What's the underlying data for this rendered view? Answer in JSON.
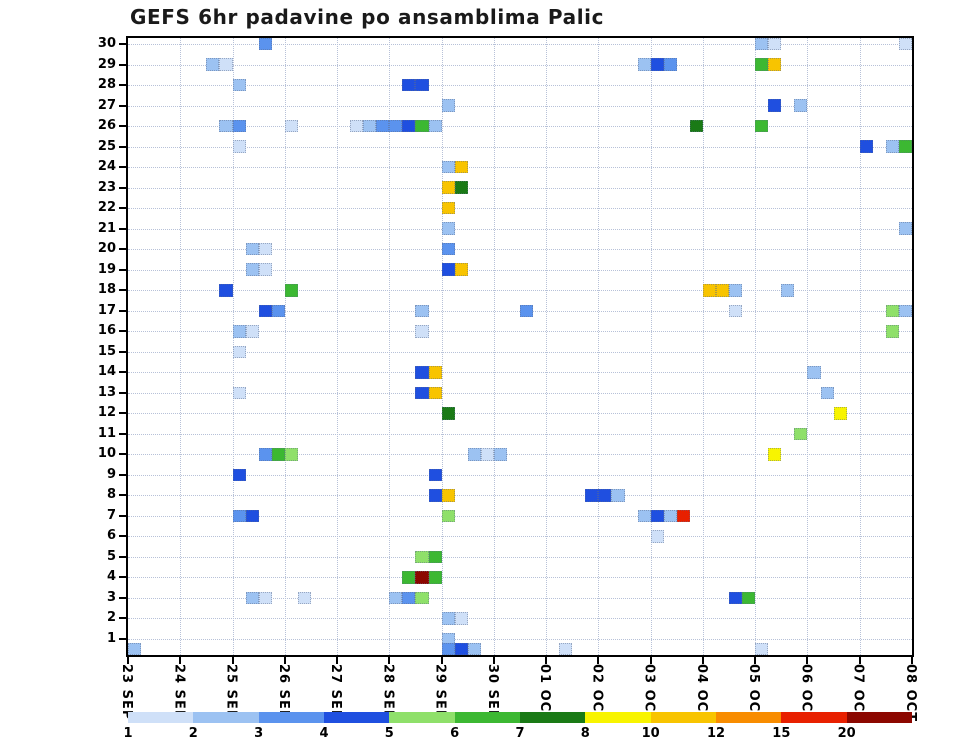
{
  "title": "GEFS 6hr padavine po ansamblima Palic",
  "y_axis": {
    "tick_labels": [
      "30",
      "29",
      "28",
      "27",
      "26",
      "25",
      "24",
      "23",
      "22",
      "21",
      "20",
      "19",
      "18",
      "17",
      "16",
      "15",
      "14",
      "13",
      "12",
      "11",
      "10",
      "9",
      "8",
      "7",
      "6",
      "5",
      "4",
      "3",
      "2",
      "1"
    ]
  },
  "x_axis": {
    "tick_labels": [
      "23 SEP",
      "24 SEP",
      "25 SEP",
      "26 SEP",
      "27 SEP",
      "28 SEP",
      "29 SEP",
      "30 SEP",
      "01 OCT",
      "02 OCT",
      "03 OCT",
      "04 OCT",
      "05 OCT",
      "06 OCT",
      "07 OCT",
      "08 OCT"
    ]
  },
  "legend": {
    "labels": [
      "1",
      "2",
      "3",
      "4",
      "5",
      "6",
      "7",
      "8",
      "10",
      "12",
      "15",
      "20"
    ],
    "colors": [
      "#cfe0f8",
      "#9cc2f2",
      "#5b93ee",
      "#1f4fe0",
      "#8fe06a",
      "#3cb832",
      "#1a7a16",
      "#f8f400",
      "#f8c400",
      "#f88c00",
      "#e82000",
      "#8c0700"
    ]
  },
  "chart_data": {
    "type": "heatmap",
    "title": "GEFS 6hr padavine po ansamblima Palic",
    "x": {
      "description": "time, 6-hour steps from 23 SEP 00h to 08 OCT",
      "steps": 60,
      "day_labels": [
        "23 SEP",
        "24 SEP",
        "25 SEP",
        "26 SEP",
        "27 SEP",
        "28 SEP",
        "29 SEP",
        "30 SEP",
        "01 OCT",
        "02 OCT",
        "03 OCT",
        "04 OCT",
        "05 OCT",
        "06 OCT",
        "07 OCT",
        "08 OCT"
      ]
    },
    "y": {
      "description": "GEFS ensemble member",
      "min": 0,
      "max": 30
    },
    "value_levels_mm": [
      1,
      2,
      3,
      4,
      5,
      6,
      7,
      8,
      10,
      12,
      15,
      20
    ],
    "level_colors": [
      "#cfe0f8",
      "#9cc2f2",
      "#5b93ee",
      "#1f4fe0",
      "#8fe06a",
      "#3cb832",
      "#1a7a16",
      "#f8f400",
      "#f8c400",
      "#f88c00",
      "#e82000",
      "#8c0700"
    ],
    "cells_format": [
      "member",
      "step_6hr_index",
      "level_index"
    ],
    "cells": [
      [
        30,
        10,
        2
      ],
      [
        30,
        48,
        1
      ],
      [
        30,
        49,
        0
      ],
      [
        30,
        59,
        0
      ],
      [
        29,
        6,
        1
      ],
      [
        29,
        7,
        0
      ],
      [
        29,
        39,
        1
      ],
      [
        29,
        40,
        3
      ],
      [
        29,
        41,
        2
      ],
      [
        29,
        48,
        5
      ],
      [
        29,
        49,
        8
      ],
      [
        28,
        8,
        1
      ],
      [
        28,
        21,
        3
      ],
      [
        28,
        22,
        3
      ],
      [
        27,
        24,
        1
      ],
      [
        27,
        49,
        3
      ],
      [
        27,
        51,
        1
      ],
      [
        26,
        7,
        1
      ],
      [
        26,
        8,
        2
      ],
      [
        26,
        12,
        0
      ],
      [
        26,
        17,
        0
      ],
      [
        26,
        18,
        1
      ],
      [
        26,
        19,
        2
      ],
      [
        26,
        20,
        2
      ],
      [
        26,
        21,
        3
      ],
      [
        26,
        22,
        5
      ],
      [
        26,
        23,
        1
      ],
      [
        26,
        43,
        6
      ],
      [
        26,
        48,
        5
      ],
      [
        25,
        8,
        0
      ],
      [
        25,
        56,
        3
      ],
      [
        25,
        58,
        1
      ],
      [
        25,
        59,
        5
      ],
      [
        24,
        24,
        1
      ],
      [
        24,
        25,
        8
      ],
      [
        23,
        24,
        8
      ],
      [
        23,
        25,
        6
      ],
      [
        22,
        24,
        8
      ],
      [
        21,
        24,
        1
      ],
      [
        21,
        59,
        1
      ],
      [
        20,
        9,
        1
      ],
      [
        20,
        10,
        0
      ],
      [
        20,
        24,
        2
      ],
      [
        19,
        9,
        1
      ],
      [
        19,
        10,
        0
      ],
      [
        19,
        24,
        3
      ],
      [
        19,
        25,
        8
      ],
      [
        18,
        7,
        3
      ],
      [
        18,
        12,
        5
      ],
      [
        18,
        44,
        8
      ],
      [
        18,
        45,
        8
      ],
      [
        18,
        46,
        1
      ],
      [
        18,
        50,
        1
      ],
      [
        17,
        10,
        3
      ],
      [
        17,
        11,
        2
      ],
      [
        17,
        22,
        1
      ],
      [
        17,
        30,
        2
      ],
      [
        17,
        46,
        0
      ],
      [
        17,
        58,
        4
      ],
      [
        17,
        59,
        1
      ],
      [
        16,
        8,
        1
      ],
      [
        16,
        9,
        0
      ],
      [
        16,
        22,
        0
      ],
      [
        16,
        58,
        4
      ],
      [
        15,
        8,
        0
      ],
      [
        14,
        22,
        3
      ],
      [
        14,
        23,
        8
      ],
      [
        14,
        52,
        1
      ],
      [
        13,
        8,
        0
      ],
      [
        13,
        22,
        3
      ],
      [
        13,
        23,
        8
      ],
      [
        13,
        53,
        1
      ],
      [
        12,
        24,
        6
      ],
      [
        12,
        54,
        7
      ],
      [
        11,
        51,
        4
      ],
      [
        10,
        10,
        2
      ],
      [
        10,
        11,
        5
      ],
      [
        10,
        12,
        4
      ],
      [
        10,
        26,
        1
      ],
      [
        10,
        27,
        0
      ],
      [
        10,
        28,
        1
      ],
      [
        10,
        49,
        7
      ],
      [
        9,
        8,
        3
      ],
      [
        9,
        23,
        3
      ],
      [
        8,
        23,
        3
      ],
      [
        8,
        24,
        8
      ],
      [
        8,
        35,
        3
      ],
      [
        8,
        36,
        3
      ],
      [
        8,
        37,
        1
      ],
      [
        7,
        8,
        2
      ],
      [
        7,
        9,
        3
      ],
      [
        7,
        24,
        4
      ],
      [
        7,
        39,
        1
      ],
      [
        7,
        40,
        3
      ],
      [
        7,
        41,
        1
      ],
      [
        7,
        42,
        10
      ],
      [
        6,
        40,
        0
      ],
      [
        5,
        22,
        4
      ],
      [
        5,
        23,
        5
      ],
      [
        4,
        21,
        5
      ],
      [
        4,
        22,
        11
      ],
      [
        4,
        23,
        5
      ],
      [
        3,
        9,
        1
      ],
      [
        3,
        10,
        0
      ],
      [
        3,
        13,
        0
      ],
      [
        3,
        20,
        1
      ],
      [
        3,
        21,
        2
      ],
      [
        3,
        22,
        4
      ],
      [
        3,
        46,
        3
      ],
      [
        3,
        47,
        5
      ],
      [
        2,
        24,
        1
      ],
      [
        2,
        25,
        0
      ],
      [
        1,
        24,
        1
      ],
      [
        0,
        0,
        1
      ],
      [
        0,
        24,
        2
      ],
      [
        0,
        25,
        3
      ],
      [
        0,
        26,
        1
      ],
      [
        0,
        33,
        0
      ],
      [
        0,
        48,
        0
      ]
    ]
  }
}
